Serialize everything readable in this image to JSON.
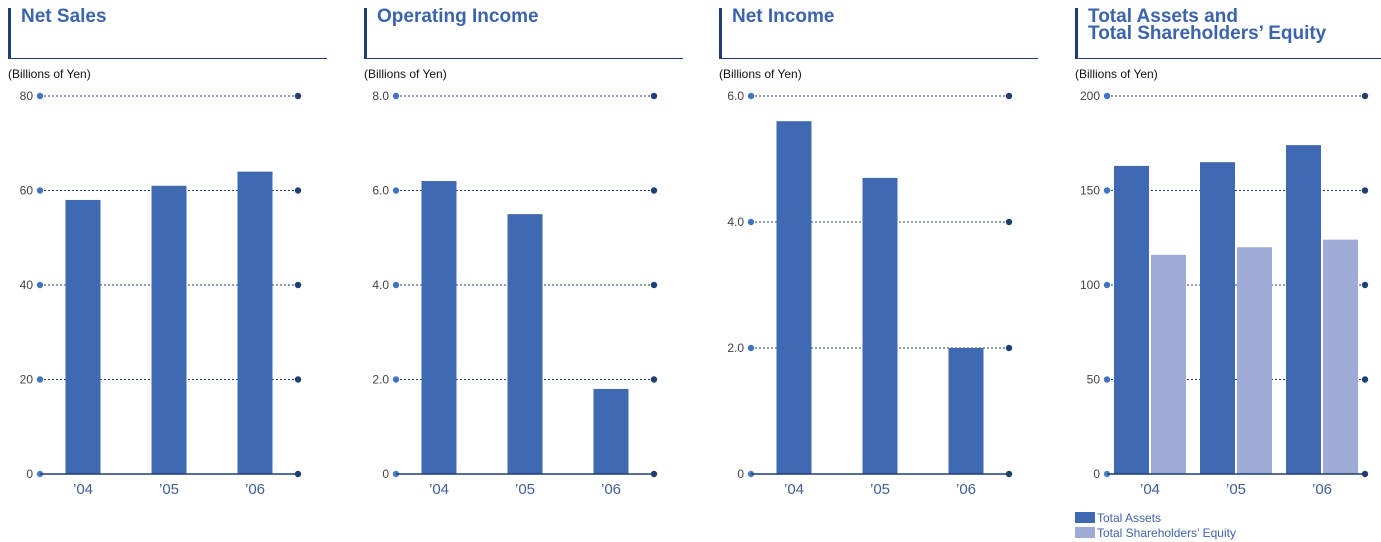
{
  "colors": {
    "primary": "#3f69b1",
    "secondary": "#9fabd7",
    "axis": "#1f3f74",
    "title": "#3c63ad",
    "tick_text": "#444444",
    "category_text": "#3f5f97"
  },
  "panels": [
    {
      "title": "Net Sales",
      "unit": "(Billions of Yen)",
      "chart_data": {
        "type": "bar",
        "categories": [
          "’04",
          "’05",
          "’06"
        ],
        "series": [
          {
            "values": [
              58,
              61,
              64
            ]
          }
        ],
        "yticks": [
          "0",
          "20",
          "40",
          "60",
          "80"
        ],
        "ylim": [
          0,
          80
        ],
        "grid": true
      }
    },
    {
      "title": "Operating Income",
      "unit": "(Billions of Yen)",
      "chart_data": {
        "type": "bar",
        "categories": [
          "’04",
          "’05",
          "’06"
        ],
        "series": [
          {
            "values": [
              6.2,
              5.5,
              1.8
            ]
          }
        ],
        "yticks": [
          "0",
          "2.0",
          "4.0",
          "6.0",
          "8.0"
        ],
        "ylim": [
          0,
          8
        ],
        "grid": true
      }
    },
    {
      "title": "Net Income",
      "unit": "(Billions of Yen)",
      "chart_data": {
        "type": "bar",
        "categories": [
          "’04",
          "’05",
          "’06"
        ],
        "series": [
          {
            "values": [
              5.6,
              4.7,
              2.0
            ]
          }
        ],
        "yticks": [
          "0",
          "2.0",
          "4.0",
          "6.0"
        ],
        "ylim": [
          0,
          6
        ],
        "grid": true
      }
    },
    {
      "title": "Total Assets and\nTotal Shareholders’ Equity",
      "unit": "(Billions of Yen)",
      "chart_data": {
        "type": "bar",
        "categories": [
          "’04",
          "’05",
          "’06"
        ],
        "series": [
          {
            "name": "Total Assets",
            "values": [
              163,
              165,
              174
            ]
          },
          {
            "name": "Total Shareholders’ Equity",
            "values": [
              116,
              120,
              124
            ]
          }
        ],
        "yticks": [
          "0",
          "50",
          "100",
          "150",
          "200"
        ],
        "ylim": [
          0,
          200
        ],
        "grid": true,
        "legend_position": "bottom-left"
      }
    }
  ]
}
